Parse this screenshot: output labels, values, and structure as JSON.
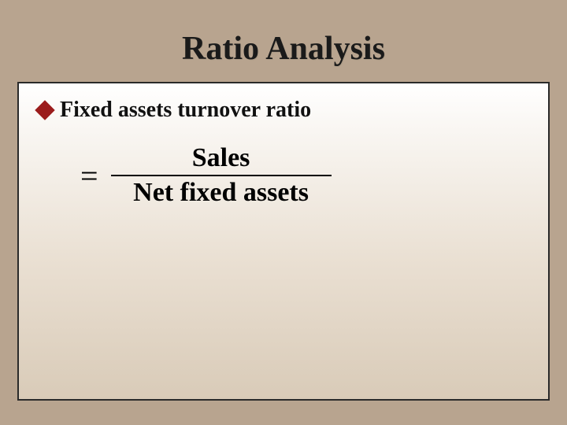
{
  "slide": {
    "title": "Ratio Analysis",
    "bullet": {
      "marker_color": "#9b1c1c",
      "text": "Fixed assets turnover ratio"
    },
    "formula": {
      "equals": "=",
      "numerator": "Sales",
      "denominator": "Net fixed assets"
    },
    "style": {
      "background_color": "#b8a48f",
      "title_fontsize": 42,
      "title_color": "#1a1a1a",
      "bullet_fontsize": 28,
      "formula_fontsize": 34,
      "box_border_color": "#2a2a2a",
      "box_gradient": [
        "#ffffff",
        "#f9f6f2",
        "#eae0d3",
        "#d9cbb8"
      ],
      "fraction_line_color": "#000000"
    }
  }
}
